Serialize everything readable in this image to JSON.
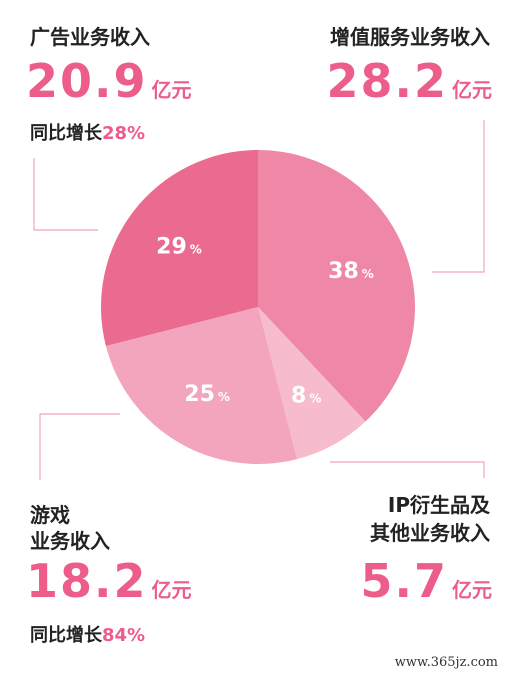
{
  "chart_data": {
    "type": "pie",
    "title": "",
    "slices": [
      {
        "label": "增值服务业务收入",
        "value": 38,
        "display": "38",
        "color": "#ef87a7"
      },
      {
        "label": "IP衍生品及其他业务收入",
        "value": 8,
        "display": "8",
        "color": "#f6bccc"
      },
      {
        "label": "游戏业务收入",
        "value": 25,
        "display": "25",
        "color": "#f2a5bd"
      },
      {
        "label": "广告业务收入",
        "value": 29,
        "display": "29",
        "color": "#ea6b8f"
      }
    ],
    "percent_sign": "%",
    "start_angle_deg": 0,
    "direction": "clockwise"
  },
  "segments": {
    "ad": {
      "name": "广告业务收入",
      "value": "20.9",
      "unit": "亿元",
      "growth_label": "同比增长",
      "growth_value": "28%"
    },
    "vas": {
      "name": "增值服务业务收入",
      "value": "28.2",
      "unit": "亿元"
    },
    "game": {
      "name_line1": "游戏",
      "name_line2": "业务收入",
      "value": "18.2",
      "unit": "亿元",
      "growth_label": "同比增长",
      "growth_value": "84%"
    },
    "ip": {
      "name_line1": "IP衍生品及",
      "name_line2": "其他业务收入",
      "value": "5.7",
      "unit": "亿元"
    }
  },
  "colors": {
    "accent": "#ec5d8a",
    "connector": "#f2a5bd"
  },
  "watermark": "www.365jz.com"
}
